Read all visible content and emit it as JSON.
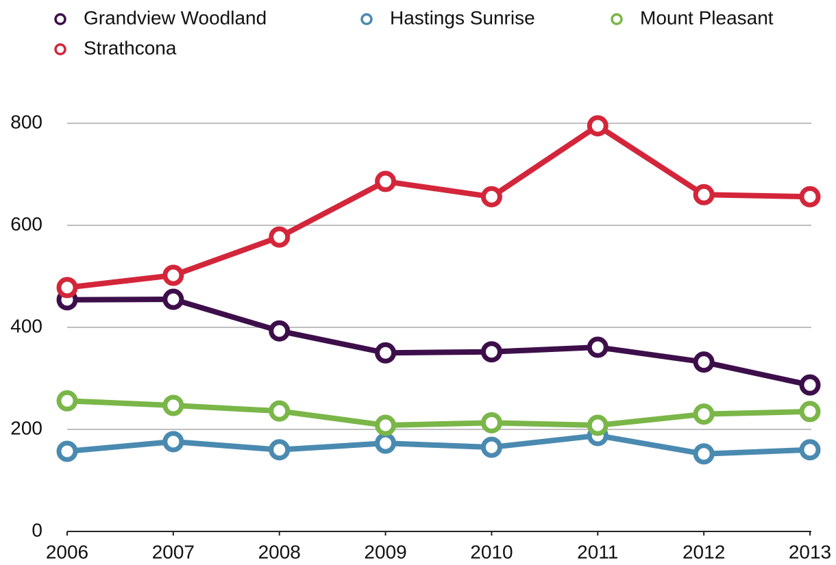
{
  "chart_data": {
    "type": "line",
    "x": [
      2006,
      2007,
      2008,
      2009,
      2010,
      2011,
      2012,
      2013
    ],
    "xlim": [
      2006,
      2013
    ],
    "xticks": [
      2006,
      2007,
      2008,
      2009,
      2010,
      2011,
      2012,
      2013
    ],
    "ylim": [
      0,
      800
    ],
    "yticks": [
      0,
      200,
      400,
      600,
      800
    ],
    "grid": true,
    "legend": "top-left",
    "series": [
      {
        "name": "Grandview Woodland",
        "color": "#3d0f4a",
        "values": [
          454,
          455,
          393,
          350,
          352,
          361,
          332,
          287
        ]
      },
      {
        "name": "Hastings Sunrise",
        "color": "#4a8ab0",
        "values": [
          157,
          176,
          160,
          173,
          165,
          188,
          152,
          160
        ]
      },
      {
        "name": "Mount Pleasant",
        "color": "#7ab648",
        "values": [
          256,
          247,
          236,
          208,
          213,
          208,
          230,
          235
        ]
      },
      {
        "name": "Strathcona",
        "color": "#d3263a",
        "values": [
          478,
          502,
          577,
          686,
          656,
          795,
          660,
          656
        ]
      }
    ]
  }
}
